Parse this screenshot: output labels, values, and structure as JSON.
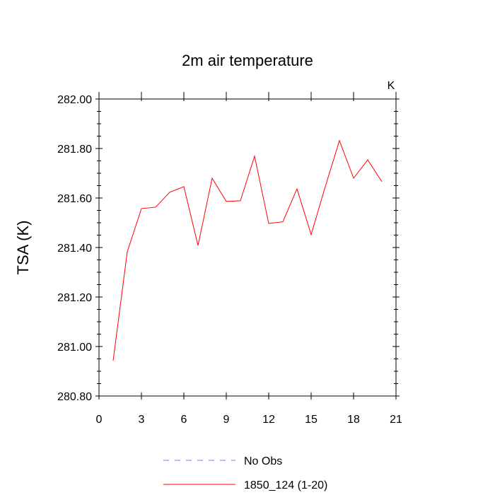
{
  "chart_data": {
    "type": "line",
    "title": "2m air temperature",
    "units_label": "K",
    "xlabel": "",
    "ylabel": "TSA  (K)",
    "xlim": [
      0,
      21
    ],
    "ylim": [
      280.8,
      282.0
    ],
    "x_ticks": [
      0,
      3,
      6,
      9,
      12,
      15,
      18,
      21
    ],
    "x_tick_labels": [
      "0",
      "3",
      "6",
      "9",
      "12",
      "15",
      "18",
      "21"
    ],
    "y_ticks": [
      280.8,
      281.0,
      281.2,
      281.4,
      281.6,
      281.8,
      282.0
    ],
    "y_tick_labels": [
      "280.80",
      "281.00",
      "281.20",
      "281.40",
      "281.60",
      "281.80",
      "282.00"
    ],
    "grid": false,
    "legend_position": "bottom",
    "series": [
      {
        "name": "1850_124 (1-20)",
        "color": "#ff0000",
        "style": "solid",
        "x": [
          1,
          2,
          3,
          4,
          5,
          6,
          7,
          8,
          9,
          10,
          11,
          12,
          13,
          14,
          15,
          16,
          17,
          18,
          19,
          20
        ],
        "values": [
          280.943,
          281.383,
          281.557,
          281.563,
          281.623,
          281.646,
          281.408,
          281.68,
          281.586,
          281.589,
          281.769,
          281.497,
          281.504,
          281.637,
          281.452,
          281.646,
          281.832,
          281.68,
          281.754,
          281.666
        ]
      }
    ],
    "legend": [
      {
        "label": "No Obs",
        "color": "#8080ff",
        "style": "dashed"
      },
      {
        "label": "1850_124 (1-20)",
        "color": "#ff0000",
        "style": "solid"
      }
    ]
  }
}
